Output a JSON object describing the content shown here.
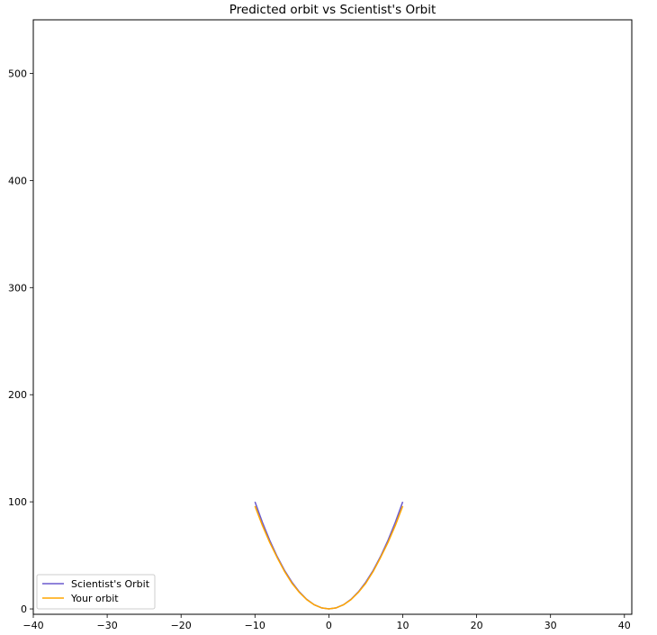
{
  "chart_data": {
    "type": "line",
    "title": "Predicted orbit vs Scientist's Orbit",
    "xlabel": "",
    "ylabel": "",
    "xlim": [
      -40,
      41
    ],
    "ylim": [
      -5,
      550
    ],
    "x_ticks": [
      -40,
      -30,
      -20,
      -10,
      0,
      10,
      20,
      30,
      40
    ],
    "y_ticks": [
      0,
      100,
      200,
      300,
      400,
      500
    ],
    "x_tick_labels": [
      "−40",
      "−30",
      "−20",
      "−10",
      "0",
      "10",
      "20",
      "30",
      "40"
    ],
    "y_tick_labels": [
      "0",
      "100",
      "200",
      "300",
      "400",
      "500"
    ],
    "grid": false,
    "legend_position": "lower-left",
    "series": [
      {
        "name": "Scientist's Orbit",
        "color": "#6a5acd",
        "x": [
          -10,
          -9,
          -8,
          -7,
          -6,
          -5,
          -4,
          -3,
          -2,
          -1,
          0,
          1,
          2,
          3,
          4,
          5,
          6,
          7,
          8,
          9,
          10
        ],
        "y": [
          100,
          81,
          64,
          49,
          36,
          25,
          16,
          9,
          4,
          1,
          0,
          1,
          4,
          9,
          16,
          25,
          36,
          49,
          64,
          81,
          100
        ]
      },
      {
        "name": "Your orbit",
        "color": "#ffa500",
        "x": [
          -10,
          -9,
          -8,
          -7,
          -6,
          -5,
          -4,
          -3,
          -2,
          -1,
          0,
          1,
          2,
          3,
          4,
          5,
          6,
          7,
          8,
          9,
          10
        ],
        "y": [
          96,
          78,
          62,
          48,
          35,
          24,
          15.5,
          8.7,
          3.9,
          1,
          0,
          1,
          3.9,
          8.7,
          15.5,
          24,
          35,
          48,
          62,
          78,
          96
        ]
      }
    ]
  }
}
